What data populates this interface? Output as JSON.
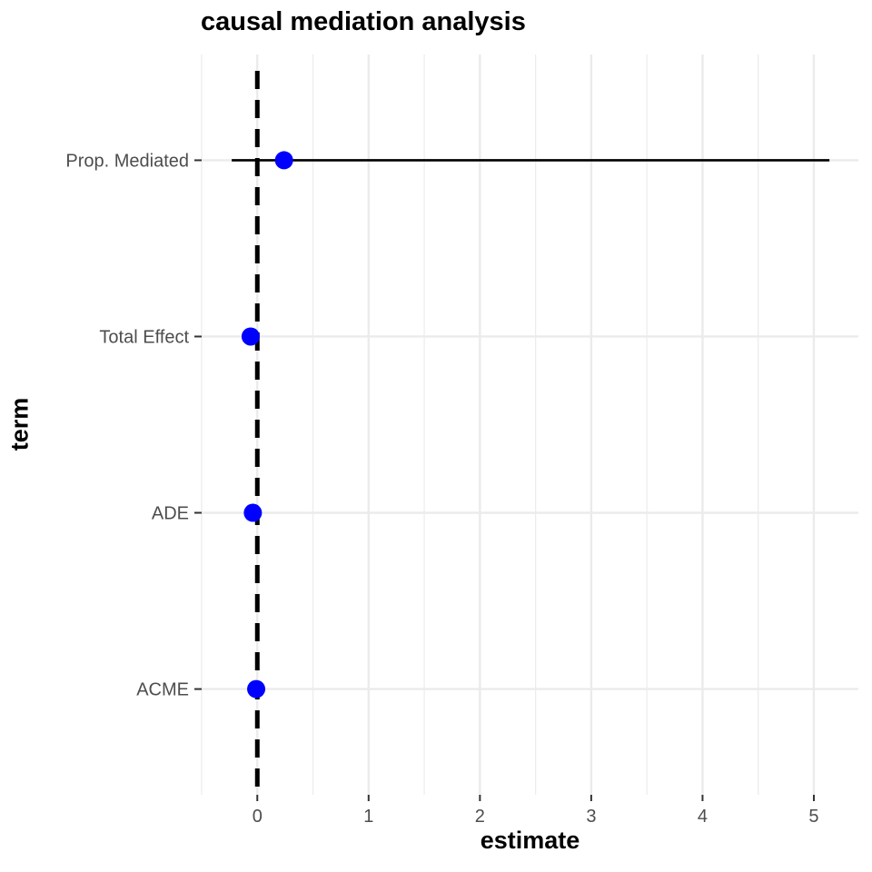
{
  "chart_data": {
    "type": "scatter",
    "title": "causal mediation analysis",
    "xlabel": "estimate",
    "ylabel": "term",
    "xlim": [
      -0.5,
      5.4
    ],
    "x_ticks": [
      0,
      1,
      2,
      3,
      4,
      5
    ],
    "x_tick_labels": [
      "0",
      "1",
      "2",
      "3",
      "4",
      "5"
    ],
    "categories": [
      "ACME",
      "ADE",
      "Total Effect",
      "Prop. Mediated"
    ],
    "points": [
      {
        "term": "ACME",
        "estimate": -0.01,
        "ci_low": -0.04,
        "ci_high": 0.02
      },
      {
        "term": "ADE",
        "estimate": -0.04,
        "ci_low": -0.07,
        "ci_high": -0.01
      },
      {
        "term": "Total Effect",
        "estimate": -0.06,
        "ci_low": -0.09,
        "ci_high": -0.03
      },
      {
        "term": "Prop. Mediated",
        "estimate": 0.24,
        "ci_low": -0.23,
        "ci_high": 5.14
      }
    ],
    "reference_line": {
      "x": 0,
      "style": "dashed",
      "color": "#000000"
    },
    "point_color": "#0000ff",
    "errorbar_color": "#000000",
    "grid": true,
    "grid_color": "#ebebeb",
    "background": "#ffffff"
  }
}
